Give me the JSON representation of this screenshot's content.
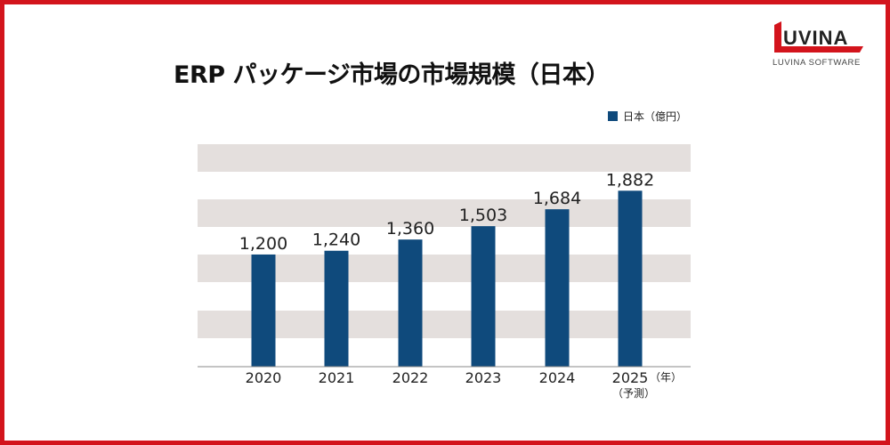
{
  "logo": {
    "mark": "LUVINA",
    "subtitle": "LUVINA SOFTWARE"
  },
  "colors": {
    "border": "#d3141c",
    "bar": "#0f4a7c",
    "band": "#e4dfdd",
    "axis": "#888888"
  },
  "chart_data": {
    "type": "bar",
    "title": "ERP パッケージ市場の市場規模（日本）",
    "categories": [
      "2020",
      "2021",
      "2022",
      "2023",
      "2024",
      "2025"
    ],
    "series": [
      {
        "name": "日本（億円）",
        "values": [
          1200,
          1240,
          1360,
          1503,
          1684,
          1882
        ]
      }
    ],
    "data_labels": [
      "1,200",
      "1,240",
      "1,360",
      "1,503",
      "1,684",
      "1,882"
    ],
    "x_unit": "（年）",
    "last_category_note": "（予測）",
    "ylim": [
      0,
      2380
    ],
    "grid": "alternating horizontal bands",
    "legend_position": "top-right"
  }
}
